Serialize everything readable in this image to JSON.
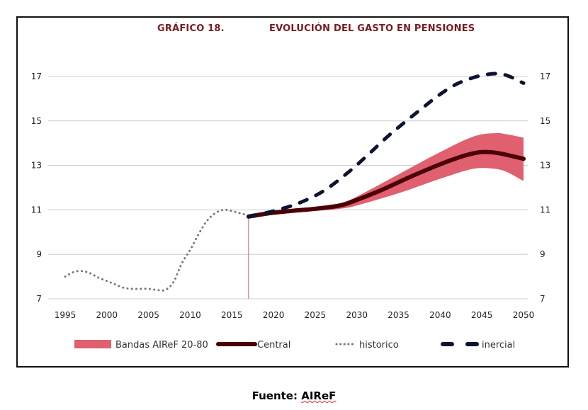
{
  "chart_title": {
    "number": "GRÁFICO 18.",
    "text": "EVOLUCIÓN DEL GASTO EN PENSIONES"
  },
  "source_label": "Fuente: ",
  "source_name": "AIReF",
  "colors": {
    "title": "#7a1a1f",
    "band": "#e06070",
    "central": "#4a0006",
    "historico": "#777777",
    "inercial": "#0d1330",
    "grid": "#cccccc"
  },
  "chart_data": {
    "type": "line",
    "title": "GRÁFICO 18. EVOLUCIÓN DEL GASTO EN PENSIONES",
    "xlabel": "",
    "ylabel": "",
    "xlim": [
      1995,
      2050
    ],
    "ylim": [
      7,
      17
    ],
    "grid": true,
    "legend_position": "bottom",
    "x_ticks": [
      "1995",
      "2000",
      "2005",
      "2010",
      "2015",
      "2020",
      "2025",
      "2030",
      "2035",
      "2040",
      "2045",
      "2050"
    ],
    "y_ticks_left": [
      "7",
      "9",
      "11",
      "13",
      "15",
      "17"
    ],
    "y_ticks_right": [
      "7",
      "9",
      "11",
      "13",
      "15",
      "17"
    ],
    "series": [
      {
        "name": "Bandas AIReF 20-80",
        "kind": "band",
        "x": [
          2017,
          2020,
          2025,
          2028,
          2030,
          2035,
          2040,
          2044,
          2046.5,
          2048,
          2050
        ],
        "lower": [
          10.7,
          10.8,
          10.95,
          11.05,
          11.2,
          11.75,
          12.4,
          12.85,
          12.85,
          12.7,
          12.3
        ],
        "upper": [
          10.7,
          10.9,
          11.1,
          11.3,
          11.6,
          12.6,
          13.6,
          14.3,
          14.45,
          14.4,
          14.25
        ]
      },
      {
        "name": "Central",
        "kind": "line",
        "x": [
          2017,
          2019.5,
          2022,
          2025,
          2028,
          2030,
          2033,
          2036.5,
          2040,
          2043,
          2045,
          2047,
          2050
        ],
        "values": [
          10.7,
          10.85,
          10.95,
          11.05,
          11.2,
          11.45,
          11.9,
          12.5,
          13.05,
          13.45,
          13.6,
          13.55,
          13.3
        ]
      },
      {
        "name": "historico",
        "kind": "dotted",
        "x": [
          1995,
          1996,
          1997,
          1998,
          1999,
          2000,
          2001,
          2002,
          2003,
          2004,
          2005,
          2006,
          2007,
          2008,
          2009,
          2010,
          2011,
          2012,
          2013,
          2014,
          2015,
          2016,
          2017
        ],
        "values": [
          8.0,
          8.2,
          8.25,
          8.15,
          7.95,
          7.8,
          7.65,
          7.5,
          7.45,
          7.45,
          7.45,
          7.4,
          7.4,
          7.75,
          8.6,
          9.2,
          9.9,
          10.5,
          10.85,
          11.0,
          10.95,
          10.85,
          10.75
        ]
      },
      {
        "name": "inercial",
        "kind": "dashed",
        "x": [
          2017,
          2020,
          2023,
          2026,
          2029,
          2031.4,
          2034,
          2037.6,
          2040,
          2042.2,
          2045,
          2047.5,
          2050
        ],
        "values": [
          10.7,
          10.95,
          11.3,
          11.85,
          12.7,
          13.5,
          14.4,
          15.5,
          16.2,
          16.7,
          17.05,
          17.1,
          16.7
        ]
      }
    ],
    "annotations": [
      {
        "type": "vertical-line",
        "x": 2017,
        "from": 7,
        "to": 10.7
      }
    ]
  }
}
